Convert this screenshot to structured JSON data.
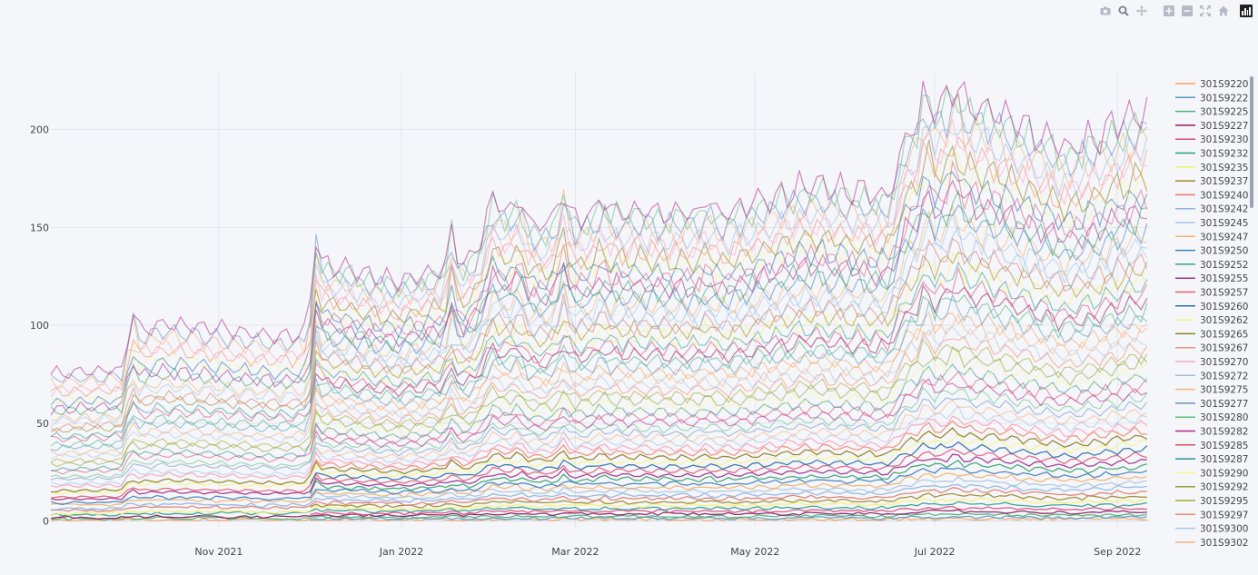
{
  "modebar": {
    "icons": [
      "camera-icon",
      "zoom-icon",
      "pan-icon",
      "zoom-in-icon",
      "zoom-out-icon",
      "autoscale-icon",
      "home-icon",
      "plotly-logo-icon"
    ]
  },
  "chart_data": {
    "type": "line",
    "title": "",
    "xlabel": "",
    "ylabel": "",
    "x_range": [
      "2021-09-04",
      "2022-09-12"
    ],
    "ylim": [
      -3,
      229
    ],
    "x_ticks": [
      {
        "date": "2021-10-31",
        "label": "Nov 2021"
      },
      {
        "date": "2022-01-01",
        "label": "Jan 2022"
      },
      {
        "date": "2022-03-01",
        "label": "Mar 2022"
      },
      {
        "date": "2022-05-01",
        "label": "May 2022"
      },
      {
        "date": "2022-07-01",
        "label": "Jul 2022"
      },
      {
        "date": "2022-09-01",
        "label": "Sep 2022"
      }
    ],
    "y_ticks": [
      0,
      50,
      100,
      150,
      200
    ],
    "grid": true,
    "legend_position": "right",
    "legend_visible_count": 34,
    "series_names": [
      "301S9220",
      "301S9222",
      "301S9225",
      "301S9227",
      "301S9230",
      "301S9232",
      "301S9235",
      "301S9237",
      "301S9240",
      "301S9242",
      "301S9245",
      "301S9247",
      "301S9250",
      "301S9252",
      "301S9255",
      "301S9257",
      "301S9260",
      "301S9262",
      "301S9265",
      "301S9267",
      "301S9270",
      "301S9272",
      "301S9275",
      "301S9277",
      "301S9280",
      "301S9282",
      "301S9285",
      "301S9287",
      "301S9290",
      "301S9292",
      "301S9295",
      "301S9297",
      "301S9300",
      "301S9302"
    ],
    "palette": [
      "#f4a460",
      "#5b9ac2",
      "#4fb07a",
      "#8b1a5a",
      "#d94a7a",
      "#2a9d8f",
      "#f7f06b",
      "#9a8a2a",
      "#e07a6a",
      "#8fb4e0",
      "#a8c4e0",
      "#f2b36b",
      "#3f7fbf",
      "#3aa26b",
      "#a0308a",
      "#e0607a",
      "#2f6fa8",
      "#f5f58a",
      "#8f7f1f",
      "#f0907a",
      "#f7a8c0",
      "#9fbfe0",
      "#f5b07a",
      "#6a8fbf",
      "#5fbf7f",
      "#b02a8a",
      "#d9506a",
      "#2a8f8f",
      "#f7f78a",
      "#8fa03a",
      "#a8a82a",
      "#f08a70",
      "#aac8e8",
      "#f4b07a"
    ],
    "profile_anchors": [
      {
        "date": "2021-09-04",
        "value": 0.35
      },
      {
        "date": "2021-09-28",
        "value": 0.36
      },
      {
        "date": "2021-10-02",
        "value": 0.45
      },
      {
        "date": "2021-10-12",
        "value": 0.47
      },
      {
        "date": "2021-11-20",
        "value": 0.44
      },
      {
        "date": "2021-12-01",
        "value": 0.45
      },
      {
        "date": "2021-12-02",
        "value": 0.62
      },
      {
        "date": "2021-12-30",
        "value": 0.57
      },
      {
        "date": "2022-01-25",
        "value": 0.62
      },
      {
        "date": "2022-02-01",
        "value": 0.76
      },
      {
        "date": "2022-02-15",
        "value": 0.7
      },
      {
        "date": "2022-03-15",
        "value": 0.74
      },
      {
        "date": "2022-04-20",
        "value": 0.73
      },
      {
        "date": "2022-05-20",
        "value": 0.8
      },
      {
        "date": "2022-06-15",
        "value": 0.77
      },
      {
        "date": "2022-06-22",
        "value": 0.93
      },
      {
        "date": "2022-07-05",
        "value": 1.0
      },
      {
        "date": "2022-07-20",
        "value": 0.98
      },
      {
        "date": "2022-08-15",
        "value": 0.88
      },
      {
        "date": "2022-09-12",
        "value": 0.98
      }
    ],
    "series_peak_range": [
      1,
      215
    ],
    "spikes": [
      {
        "date": "2021-10-01",
        "amount": 0.08
      },
      {
        "date": "2021-12-02",
        "amount": 0.12
      },
      {
        "date": "2022-01-18",
        "amount": 0.1
      },
      {
        "date": "2022-02-10",
        "amount": 0.08
      },
      {
        "date": "2022-02-25",
        "amount": 0.12
      },
      {
        "date": "2022-03-10",
        "amount": 0.06
      },
      {
        "date": "2022-04-15",
        "amount": 0.05
      },
      {
        "date": "2022-06-28",
        "amount": 0.1
      },
      {
        "date": "2022-07-08",
        "amount": 0.09
      }
    ]
  }
}
